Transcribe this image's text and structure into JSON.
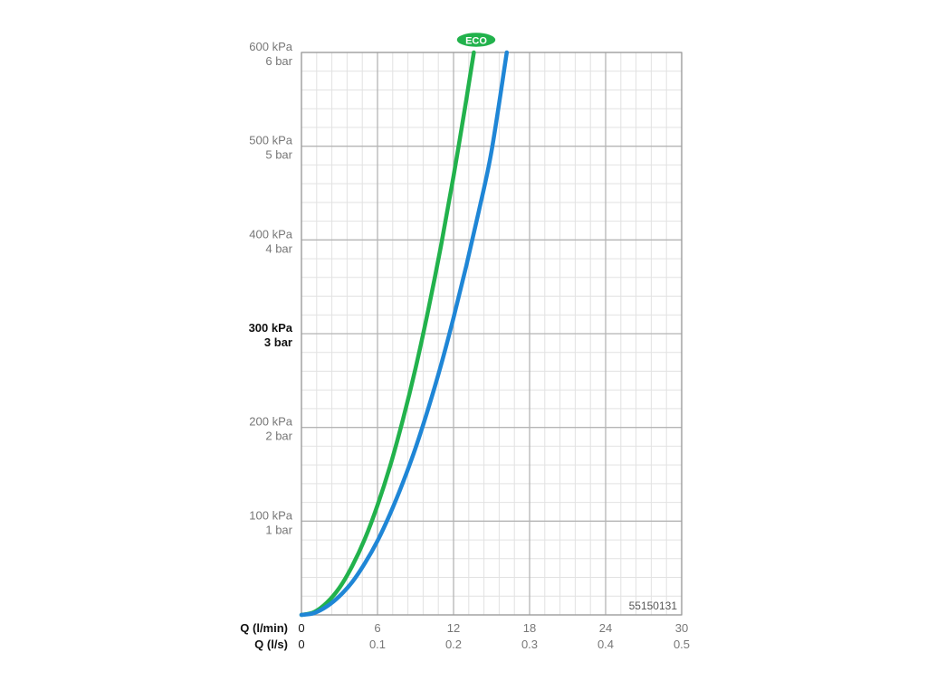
{
  "chart_data": {
    "type": "line",
    "title": "",
    "xlabel": "",
    "ylabel": "",
    "x_axis_primary": {
      "label": "Q (l/min)",
      "ticks": [
        "0",
        "6",
        "12",
        "18",
        "24",
        "30"
      ],
      "range": [
        0,
        30
      ]
    },
    "x_axis_secondary": {
      "label": "Q (l/s)",
      "ticks": [
        "0",
        "0.1",
        "0.2",
        "0.3",
        "0.4",
        "0.5"
      ],
      "range": [
        0,
        0.5
      ]
    },
    "y_axis": {
      "unit": "kPa",
      "range": [
        0,
        600
      ],
      "ticks": [
        {
          "value": 600,
          "kpa": "600 kPa",
          "bar": "6 bar",
          "bold": false
        },
        {
          "value": 500,
          "kpa": "500 kPa",
          "bar": "5 bar",
          "bold": false
        },
        {
          "value": 400,
          "kpa": "400 kPa",
          "bar": "4 bar",
          "bold": false
        },
        {
          "value": 300,
          "kpa": "300 kPa",
          "bar": "3 bar",
          "bold": true
        },
        {
          "value": 200,
          "kpa": "200 kPa",
          "bar": "2 bar",
          "bold": false
        },
        {
          "value": 100,
          "kpa": "100 kPa",
          "bar": "1 bar",
          "bold": false
        }
      ]
    },
    "grid": true,
    "minor_grid_per_major": 5,
    "series": [
      {
        "color": "#22b24c",
        "x": [
          0,
          1,
          2,
          3,
          4,
          5,
          6,
          7,
          8,
          9,
          10,
          11,
          12,
          13,
          13.6
        ],
        "y": [
          0,
          3,
          13,
          29,
          52,
          81,
          117,
          159,
          208,
          263,
          325,
          393,
          468,
          549,
          600
        ]
      },
      {
        "color": "#1f86d6",
        "x": [
          0,
          1,
          2,
          3,
          4,
          5,
          6,
          7,
          8,
          9,
          10,
          11,
          12,
          13,
          14,
          15,
          16.2
        ],
        "y": [
          0,
          2,
          9,
          20,
          35,
          55,
          79,
          108,
          141,
          178,
          220,
          266,
          317,
          372,
          431,
          495,
          600
        ]
      }
    ],
    "badge": {
      "text": "ECO",
      "color": "#22b24c"
    },
    "annotation": "55150131"
  }
}
